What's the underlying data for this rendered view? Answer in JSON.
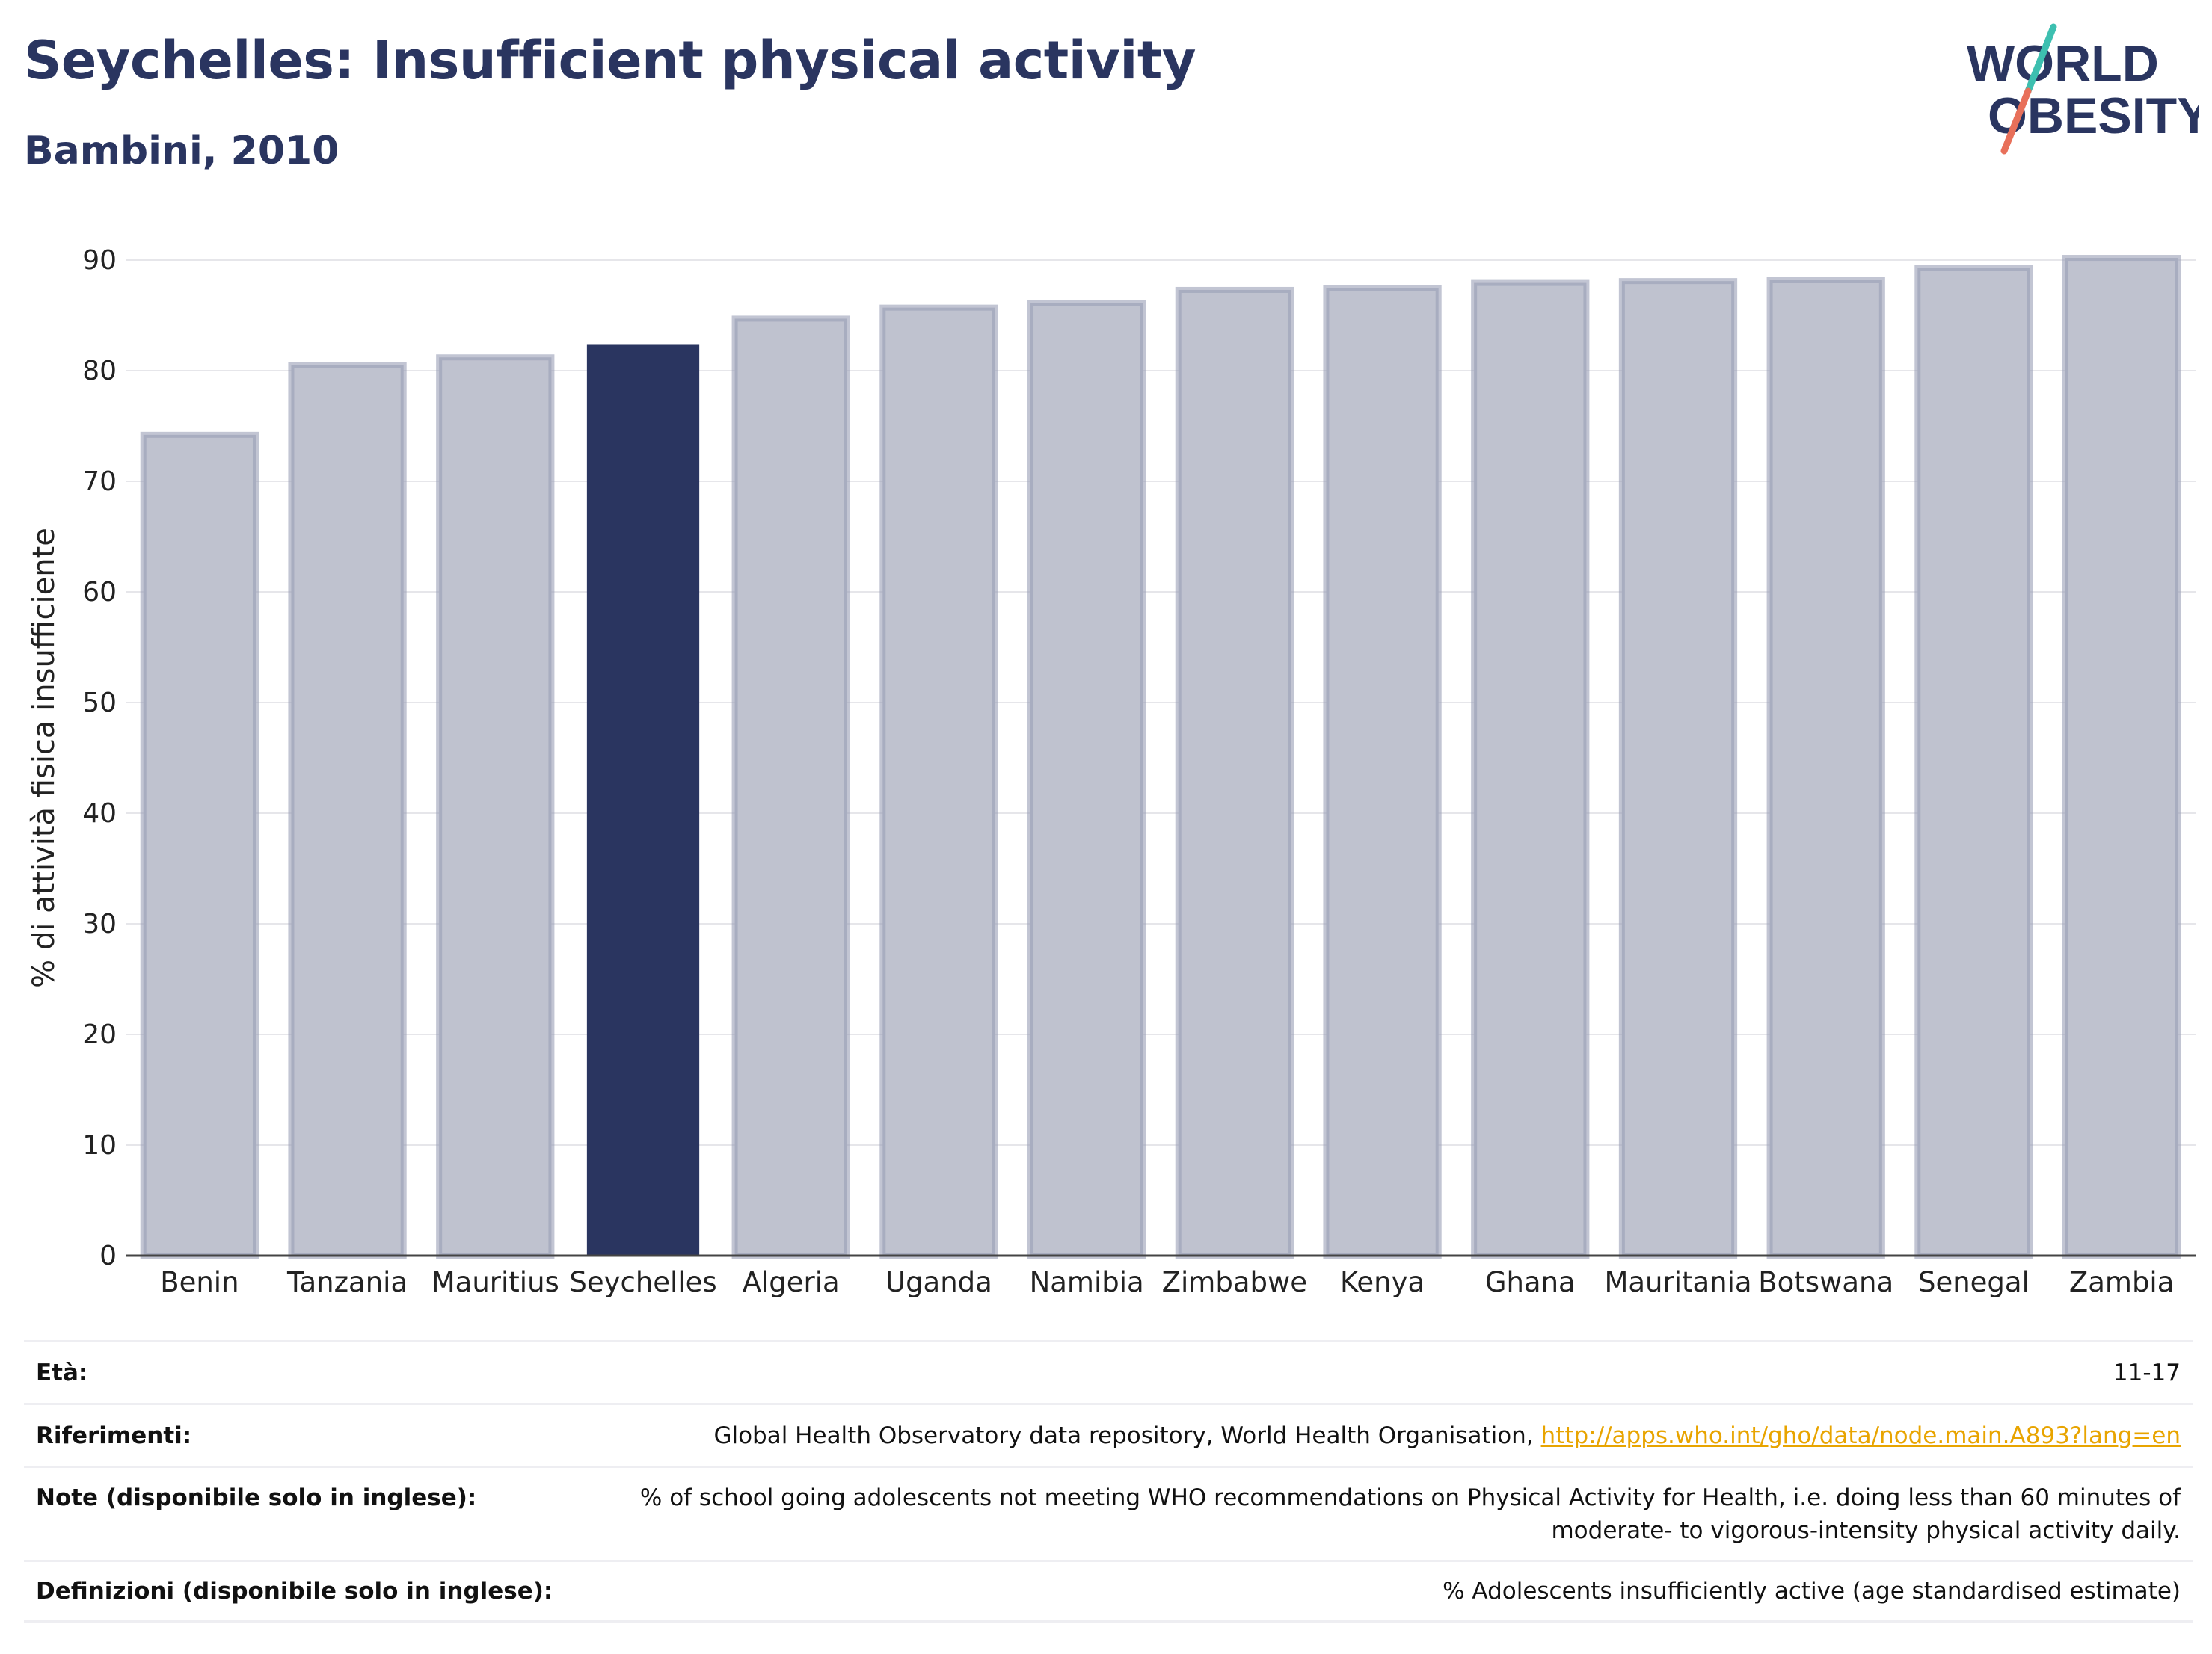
{
  "title": "Seychelles: Insufficient physical activity",
  "subtitle": "Bambini, 2010",
  "logo": {
    "line1": "WORLD",
    "line2": "OBESITY",
    "accent_teal": "#3dbfb0",
    "accent_coral": "#e8705a"
  },
  "colors": {
    "highlight": "#2a3560",
    "bar_fill": "#bfc2cf",
    "bar_stroke": "#9a9fb5",
    "text": "#2a3560"
  },
  "chart_data": {
    "type": "bar",
    "categories": [
      "Benin",
      "Tanzania",
      "Mauritius",
      "Seychelles",
      "Algeria",
      "Uganda",
      "Namibia",
      "Zimbabwe",
      "Kenya",
      "Ghana",
      "Mauritania",
      "Botswana",
      "Senegal",
      "Zambia"
    ],
    "values": [
      74.2,
      80.5,
      81.2,
      82.4,
      84.7,
      85.7,
      86.1,
      87.3,
      87.5,
      88.0,
      88.1,
      88.2,
      89.3,
      90.2
    ],
    "highlight": "Seychelles",
    "ylabel": "% di attività fisica insufficiente",
    "xlabel": "",
    "ylim": [
      0,
      90
    ],
    "yticks": [
      0,
      10,
      20,
      30,
      40,
      50,
      60,
      70,
      80,
      90
    ],
    "grid": true
  },
  "info": {
    "age": {
      "label": "Età:",
      "value": "11-17"
    },
    "references": {
      "label": "Riferimenti:",
      "text": "Global Health Observatory data repository, World Health Organisation, ",
      "link": "http://apps.who.int/gho/data/node.main.A893?lang=en"
    },
    "notes": {
      "label": "Note (disponibile solo in inglese):",
      "line1": "% of school going adolescents not meeting WHO recommendations on Physical Activity for Health, i.e. doing less than 60 minutes of",
      "line2": "moderate- to vigorous-intensity physical activity daily."
    },
    "definitions": {
      "label": "Definizioni (disponibile solo in inglese):",
      "value": "% Adolescents insufficiently active (age standardised estimate)"
    }
  }
}
